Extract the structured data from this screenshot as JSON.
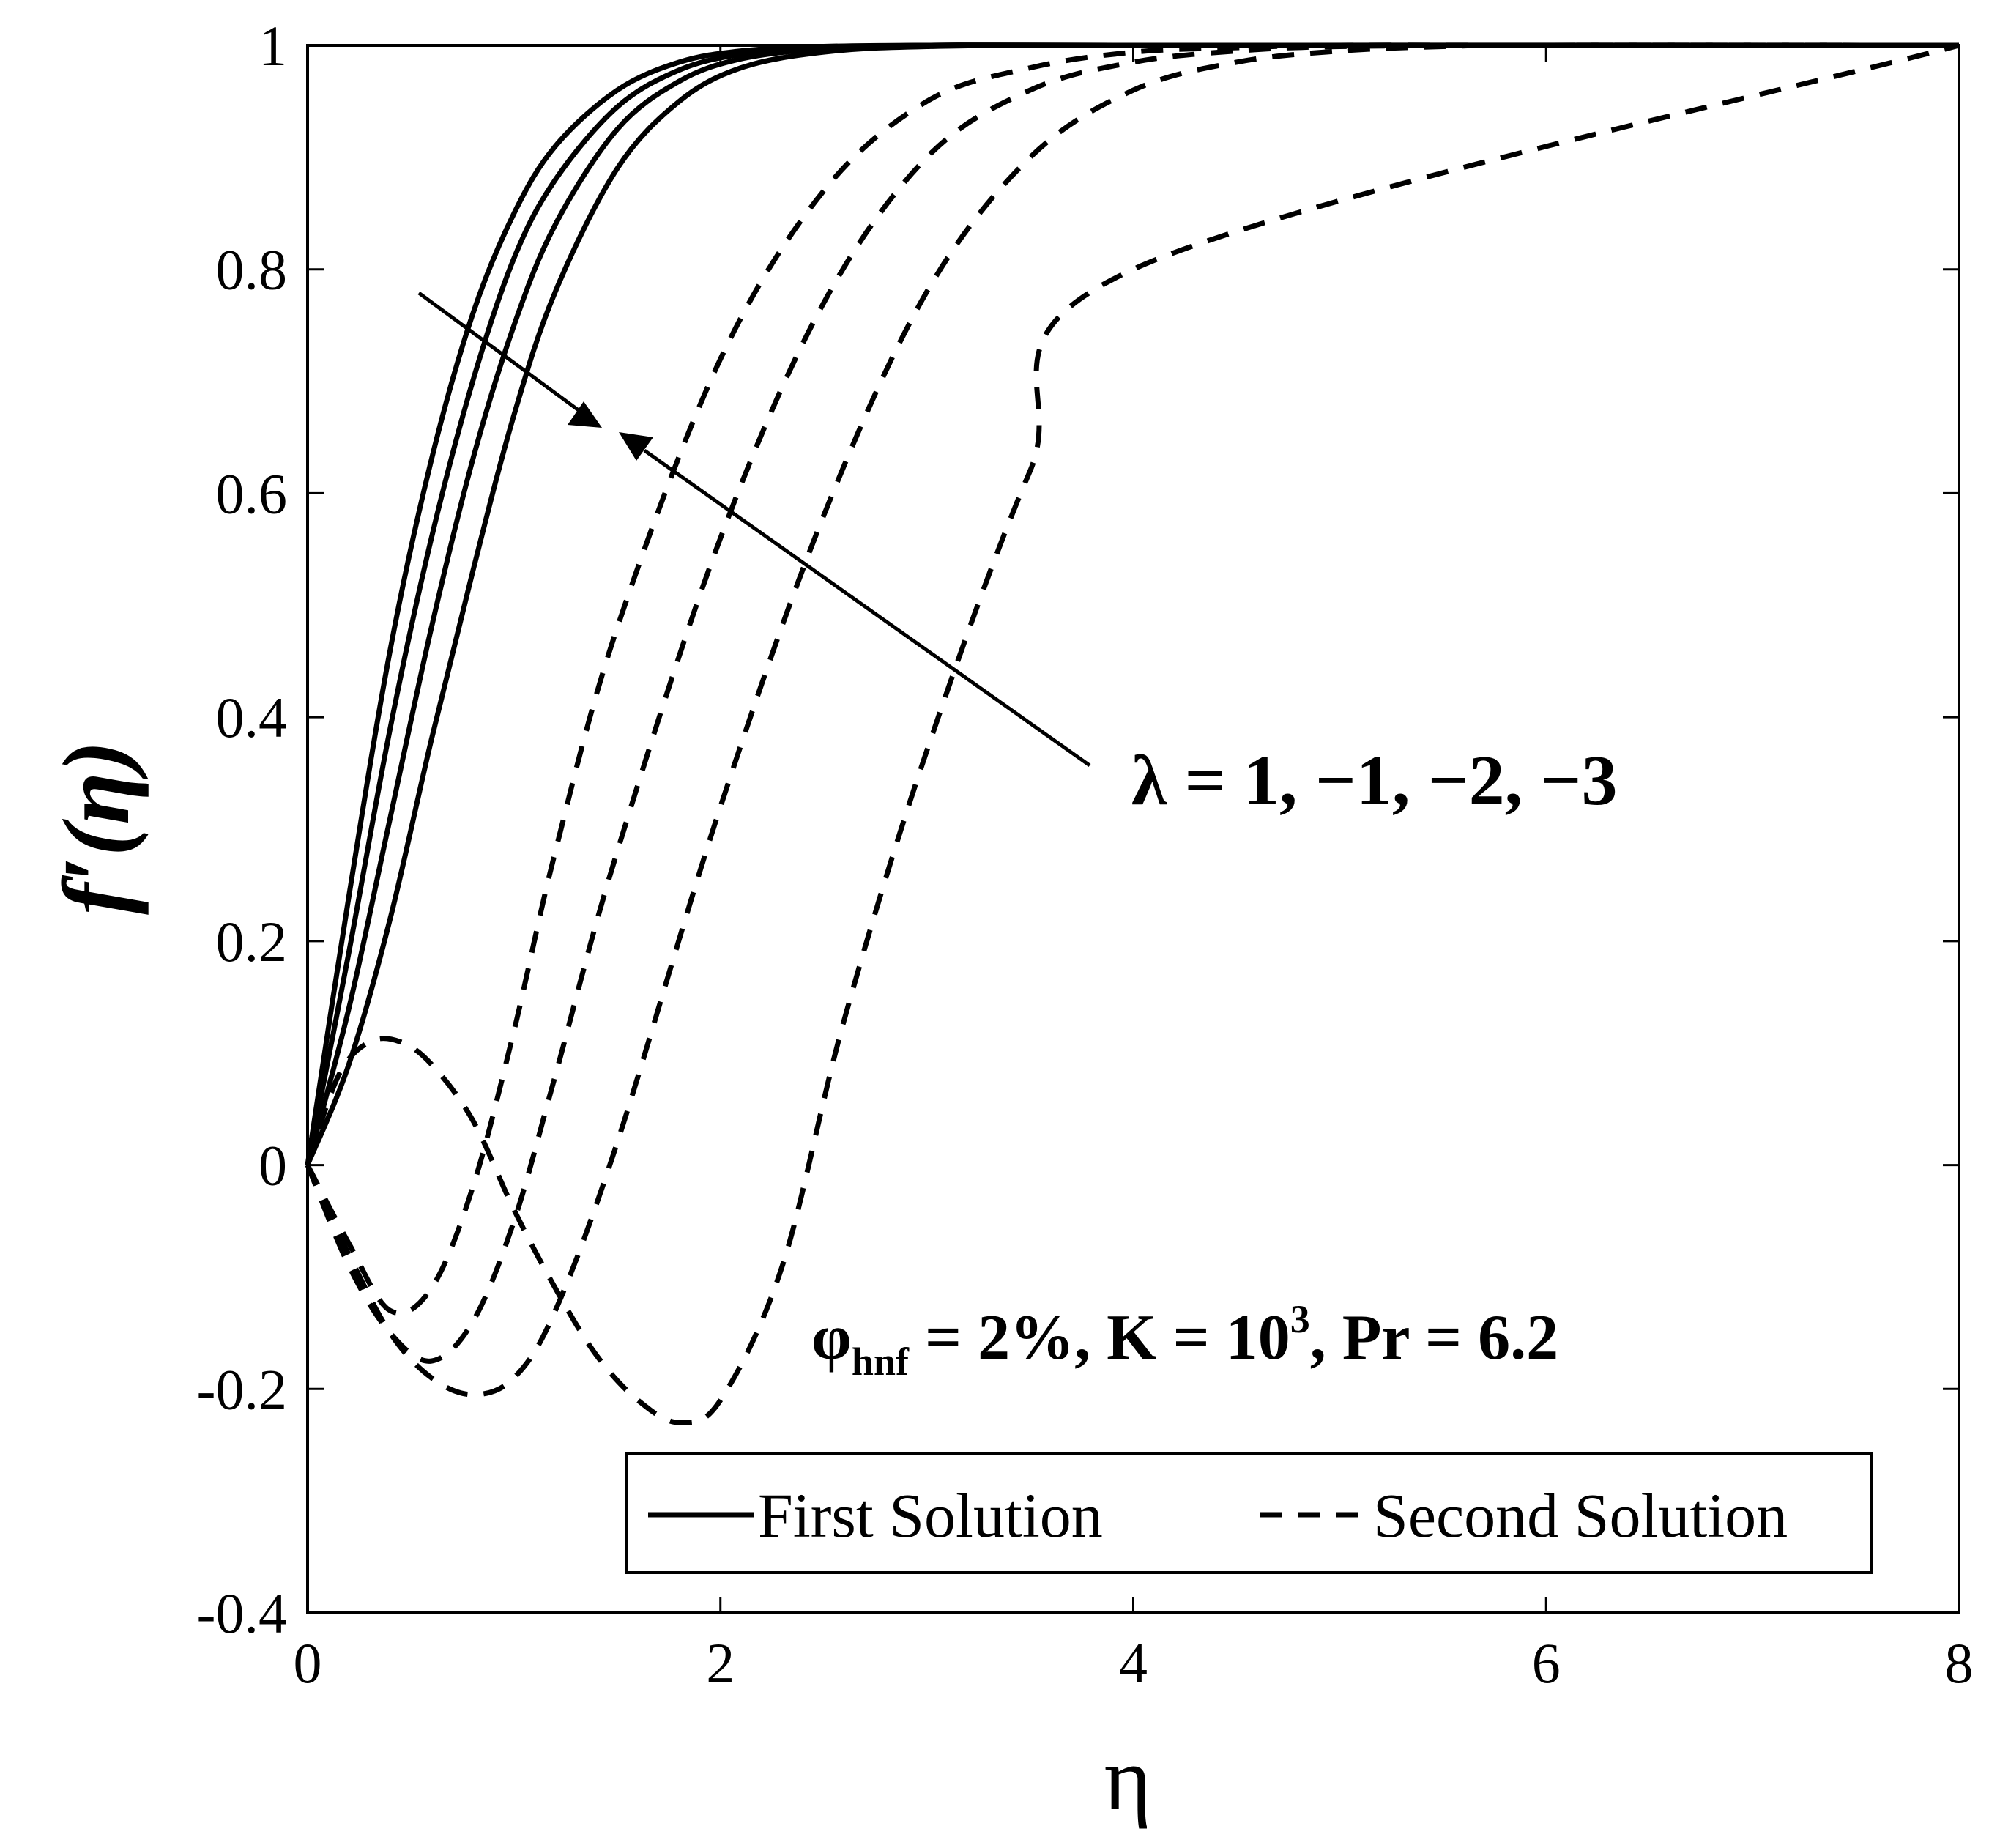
{
  "chart_data": {
    "type": "line",
    "xlabel": "η",
    "ylabel": "f′(η)",
    "xlim": [
      0,
      8
    ],
    "ylim": [
      -0.4,
      1
    ],
    "xticks": [
      "0",
      "2",
      "4",
      "6",
      "8"
    ],
    "yticks": [
      "-0.4",
      "-0.2",
      "0",
      "0.2",
      "0.4",
      "0.6",
      "0.8",
      "1"
    ],
    "grid": false,
    "legend_position": "bottom-right",
    "legend": [
      {
        "label": "First Solution",
        "style": "solid"
      },
      {
        "label": "Second Solution",
        "style": "dashed"
      }
    ],
    "annotations": {
      "lambda_text": "λ = 1, −1, −2, −3",
      "params_phi": "φ",
      "params_phi_sub": "hnf",
      "params_mid": " = 2%, K = 10",
      "params_sup": "3",
      "params_tail": ", Pr = 6.2"
    },
    "series": [
      {
        "style": "solid",
        "x": [
          0,
          0.2,
          0.4,
          0.6,
          0.8,
          1.0,
          1.2,
          1.5,
          1.8,
          2.1,
          2.5,
          3.0,
          4.0,
          8.0
        ],
        "y": [
          0,
          0.24,
          0.46,
          0.63,
          0.76,
          0.85,
          0.91,
          0.96,
          0.985,
          0.995,
          0.999,
          1.0,
          1.0,
          1.0
        ]
      },
      {
        "style": "solid",
        "x": [
          0,
          0.2,
          0.4,
          0.6,
          0.8,
          1.0,
          1.2,
          1.5,
          1.8,
          2.1,
          2.5,
          3.0,
          4.0,
          8.0
        ],
        "y": [
          0,
          0.19,
          0.39,
          0.56,
          0.7,
          0.81,
          0.88,
          0.945,
          0.978,
          0.992,
          0.998,
          1.0,
          1.0,
          1.0
        ]
      },
      {
        "style": "solid",
        "x": [
          0,
          0.2,
          0.4,
          0.6,
          0.8,
          1.0,
          1.2,
          1.5,
          1.8,
          2.1,
          2.5,
          3.0,
          4.0,
          8.0
        ],
        "y": [
          0,
          0.14,
          0.31,
          0.48,
          0.63,
          0.75,
          0.84,
          0.925,
          0.968,
          0.988,
          0.997,
          1.0,
          1.0,
          1.0
        ]
      },
      {
        "style": "solid",
        "x": [
          0,
          0.2,
          0.4,
          0.6,
          0.8,
          1.0,
          1.2,
          1.5,
          1.8,
          2.1,
          2.5,
          3.0,
          4.0,
          8.0
        ],
        "y": [
          0,
          0.09,
          0.22,
          0.38,
          0.53,
          0.67,
          0.78,
          0.89,
          0.95,
          0.98,
          0.994,
          0.999,
          1.0,
          1.0
        ]
      },
      {
        "style": "dashed",
        "x": [
          0,
          0.15,
          0.3,
          0.45,
          0.6,
          0.8,
          1.0,
          1.2,
          1.4,
          1.6,
          1.8,
          2.0,
          2.3,
          2.6,
          3.0,
          3.5,
          4.0,
          8.0
        ],
        "y": [
          0,
          0.08,
          0.11,
          0.11,
          0.09,
          0.04,
          -0.04,
          -0.11,
          -0.17,
          -0.21,
          -0.23,
          -0.21,
          -0.09,
          0.13,
          0.37,
          0.62,
          0.8,
          1.0
        ]
      },
      {
        "style": "dashed",
        "x": [
          0,
          0.2,
          0.4,
          0.6,
          0.8,
          1.0,
          1.2,
          1.5,
          2.0,
          2.5,
          3.0,
          3.5,
          4.0,
          4.5,
          5.0,
          5.5,
          6.0,
          8.0
        ],
        "y": [
          0,
          -0.08,
          -0.15,
          -0.19,
          -0.205,
          -0.19,
          -0.13,
          0.02,
          0.32,
          0.58,
          0.78,
          0.9,
          0.96,
          0.985,
          0.995,
          0.999,
          1.0,
          1.0
        ]
      },
      {
        "style": "dashed",
        "x": [
          0,
          0.2,
          0.4,
          0.6,
          0.8,
          1.0,
          1.2,
          1.5,
          2.0,
          2.5,
          3.0,
          3.5,
          4.0,
          4.5,
          5.0,
          6.0,
          8.0
        ],
        "y": [
          0,
          -0.09,
          -0.15,
          -0.175,
          -0.14,
          -0.05,
          0.08,
          0.28,
          0.56,
          0.77,
          0.9,
          0.96,
          0.985,
          0.995,
          0.999,
          1.0,
          1.0
        ]
      },
      {
        "style": "dashed",
        "x": [
          0,
          0.2,
          0.4,
          0.6,
          0.8,
          1.0,
          1.2,
          1.5,
          2.0,
          2.5,
          3.0,
          3.5,
          4.0,
          4.5,
          5.0,
          6.0,
          8.0
        ],
        "y": [
          0,
          -0.07,
          -0.13,
          -0.11,
          -0.02,
          0.12,
          0.28,
          0.48,
          0.72,
          0.87,
          0.95,
          0.98,
          0.994,
          0.998,
          1.0,
          1.0,
          1.0
        ]
      }
    ]
  }
}
